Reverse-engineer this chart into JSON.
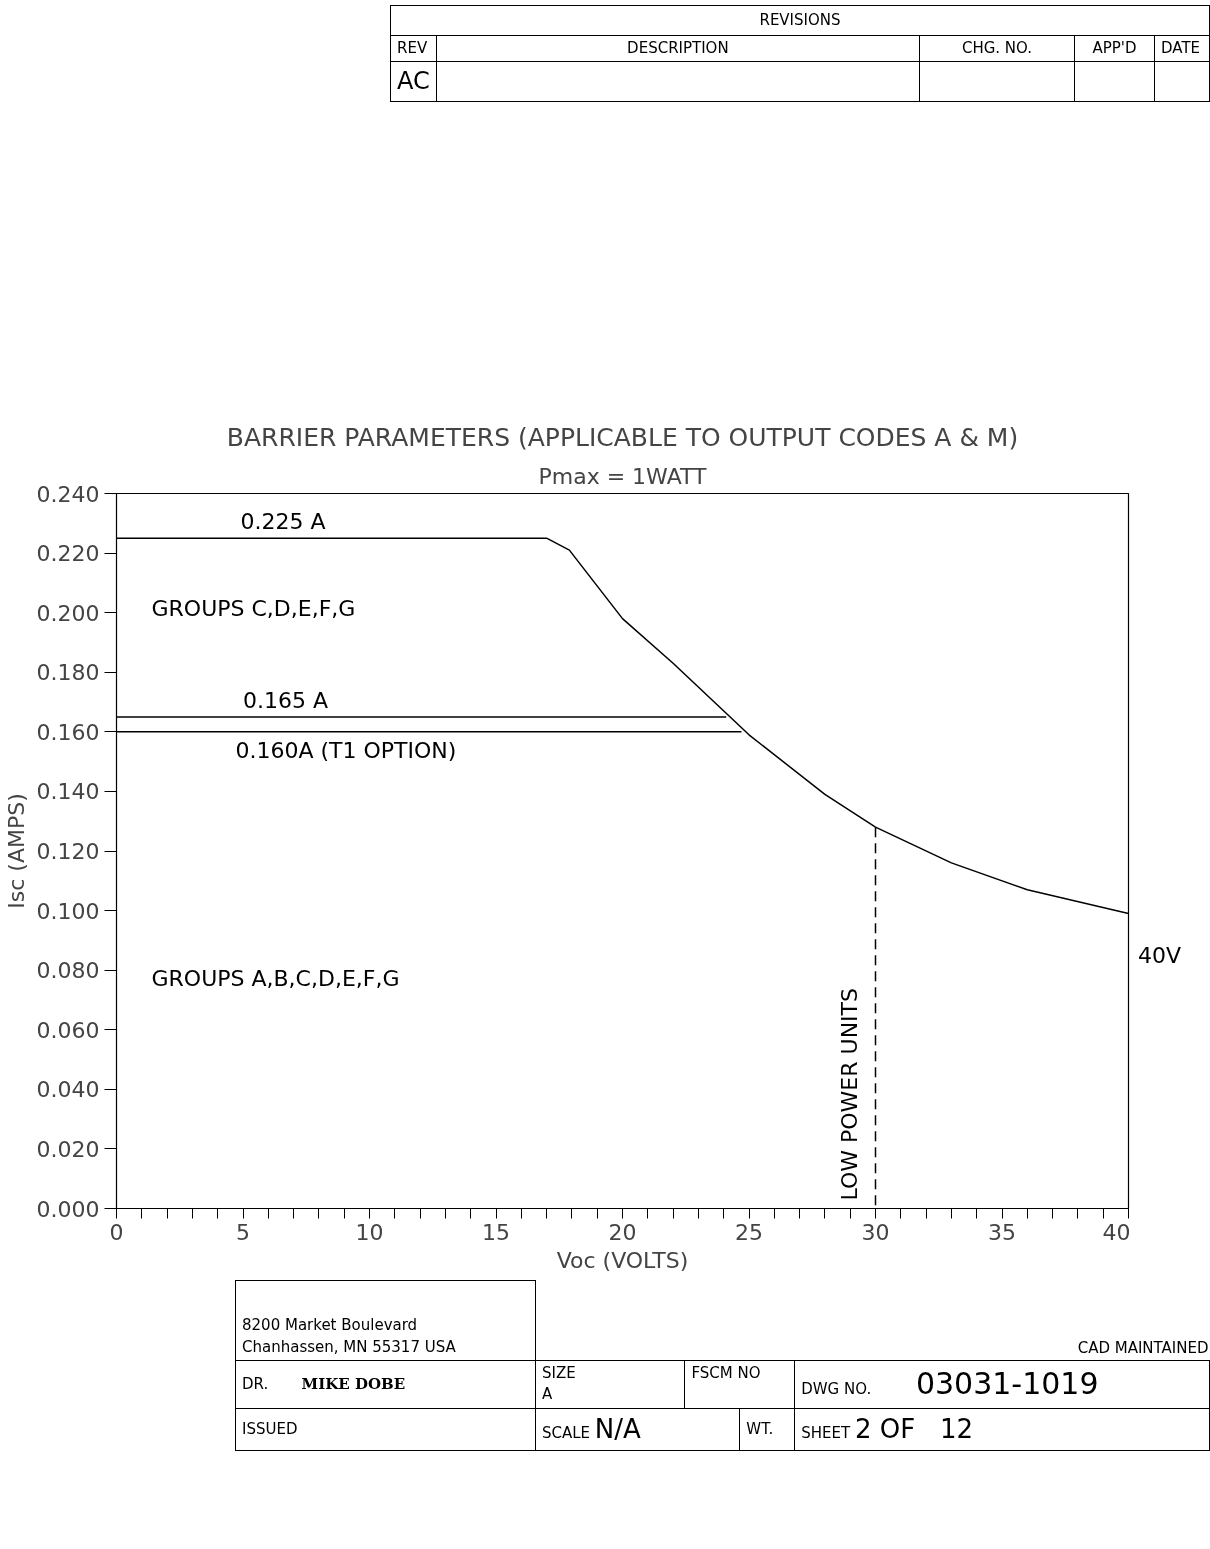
{
  "chart_data": {
    "type": "line",
    "title": "BARRIER PARAMETERS (APPLICABLE TO OUTPUT CODES A & M)",
    "subtitle": "Pmax = 1WATT",
    "xlabel": "Voc (VOLTS)",
    "ylabel": "Isc (AMPS)",
    "series": [
      {
        "color": "#000000",
        "x": [
          0,
          17.0,
          17.9,
          20,
          22,
          25,
          28,
          30,
          33,
          36,
          40
        ],
        "values": [
          0.225,
          0.225,
          0.221,
          0.198,
          0.183,
          0.159,
          0.139,
          0.128,
          0.116,
          0.107,
          0.099
        ]
      },
      {
        "color": "#000000",
        "x": [
          0,
          24.1
        ],
        "values": [
          0.165,
          0.165
        ]
      },
      {
        "color": "#000000",
        "x": [
          0,
          24.7
        ],
        "values": [
          0.16,
          0.16
        ]
      },
      {
        "name": "LOW POWER UNITS",
        "color": "#000000",
        "line_style": "dashed",
        "x": [
          30,
          30
        ],
        "values": [
          0,
          0.128
        ]
      }
    ],
    "xlim": [
      0,
      40
    ],
    "xticks": [
      0,
      {
        "value": 1,
        "label": null
      },
      {
        "value": 2,
        "label": null
      },
      {
        "value": 3,
        "label": null
      },
      {
        "value": 4,
        "label": null
      },
      5,
      {
        "value": 6,
        "label": null
      },
      {
        "value": 7,
        "label": null
      },
      {
        "value": 8,
        "label": null
      },
      {
        "value": 9,
        "label": null
      },
      10,
      {
        "value": 11,
        "label": null
      },
      {
        "value": 12,
        "label": null
      },
      {
        "value": 13,
        "label": null
      },
      {
        "value": 14,
        "label": null
      },
      15,
      {
        "value": 16,
        "label": null
      },
      {
        "value": 17,
        "label": null
      },
      {
        "value": 18,
        "label": null
      },
      {
        "value": 19,
        "label": null
      },
      20,
      {
        "value": 21,
        "label": null
      },
      {
        "value": 22,
        "label": null
      },
      {
        "value": 23,
        "label": null
      },
      {
        "value": 24,
        "label": null
      },
      25,
      {
        "value": 26,
        "label": null
      },
      {
        "value": 27,
        "label": null
      },
      {
        "value": 28,
        "label": null
      },
      {
        "value": 29,
        "label": null
      },
      30,
      {
        "value": 31,
        "label": null
      },
      {
        "value": 32,
        "label": null
      },
      {
        "value": 33,
        "label": null
      },
      {
        "value": 34,
        "label": null
      },
      35,
      {
        "value": 36,
        "label": null
      },
      {
        "value": 37,
        "label": null
      },
      {
        "value": 38,
        "label": null
      },
      {
        "value": 39,
        "label": null
      },
      40
    ],
    "ylim": [
      0,
      0.24
    ],
    "yticks": [
      {
        "value": 0,
        "label": "0.000"
      },
      {
        "value": 0.02,
        "label": "0.020"
      },
      {
        "value": 0.04,
        "label": "0.040"
      },
      {
        "value": 0.06,
        "label": "0.060"
      },
      {
        "value": 0.08,
        "label": "0.080"
      },
      {
        "value": 0.1,
        "label": "0.100"
      },
      {
        "value": 0.12,
        "label": "0.120"
      },
      {
        "value": 0.14,
        "label": "0.140"
      },
      {
        "value": 0.16,
        "label": "0.160"
      },
      {
        "value": 0.18,
        "label": "0.180"
      },
      {
        "value": 0.2,
        "label": "0.200"
      },
      {
        "value": 0.22,
        "label": "0.220"
      },
      {
        "value": 0.24,
        "label": "0.240"
      }
    ],
    "grid": false,
    "marker": "none",
    "line_style": "solid",
    "annotations": [
      {
        "text": "0.225 A",
        "x": 4.9,
        "y": 0.225
      },
      "GROUPS   C,D,E,F,G",
      {
        "text": "0.165 A",
        "x": 5.0,
        "y": 0.165
      },
      {
        "text": "0.160A (T1 OPTION)",
        "x": 4.7,
        "y": 0.16
      },
      "GROUPS   A,B,C,D,E,F,G",
      "40V",
      "REVISIONS",
      "REV",
      "DESCRIPTION",
      "CHG. NO.",
      "APP'D",
      "DATE",
      "AC",
      "8200  Market Boulevard",
      "Chanhassen, MN  55317  USA",
      "CAD MAINTAINED",
      "DR.",
      "MIKE  DOBE",
      "SIZE",
      "A",
      "FSCM NO",
      "DWG NO.",
      "03031-1019",
      "ISSUED",
      "SCALE",
      "N/A",
      "WT.",
      "SHEET",
      "2 OF",
      "12"
    ]
  }
}
